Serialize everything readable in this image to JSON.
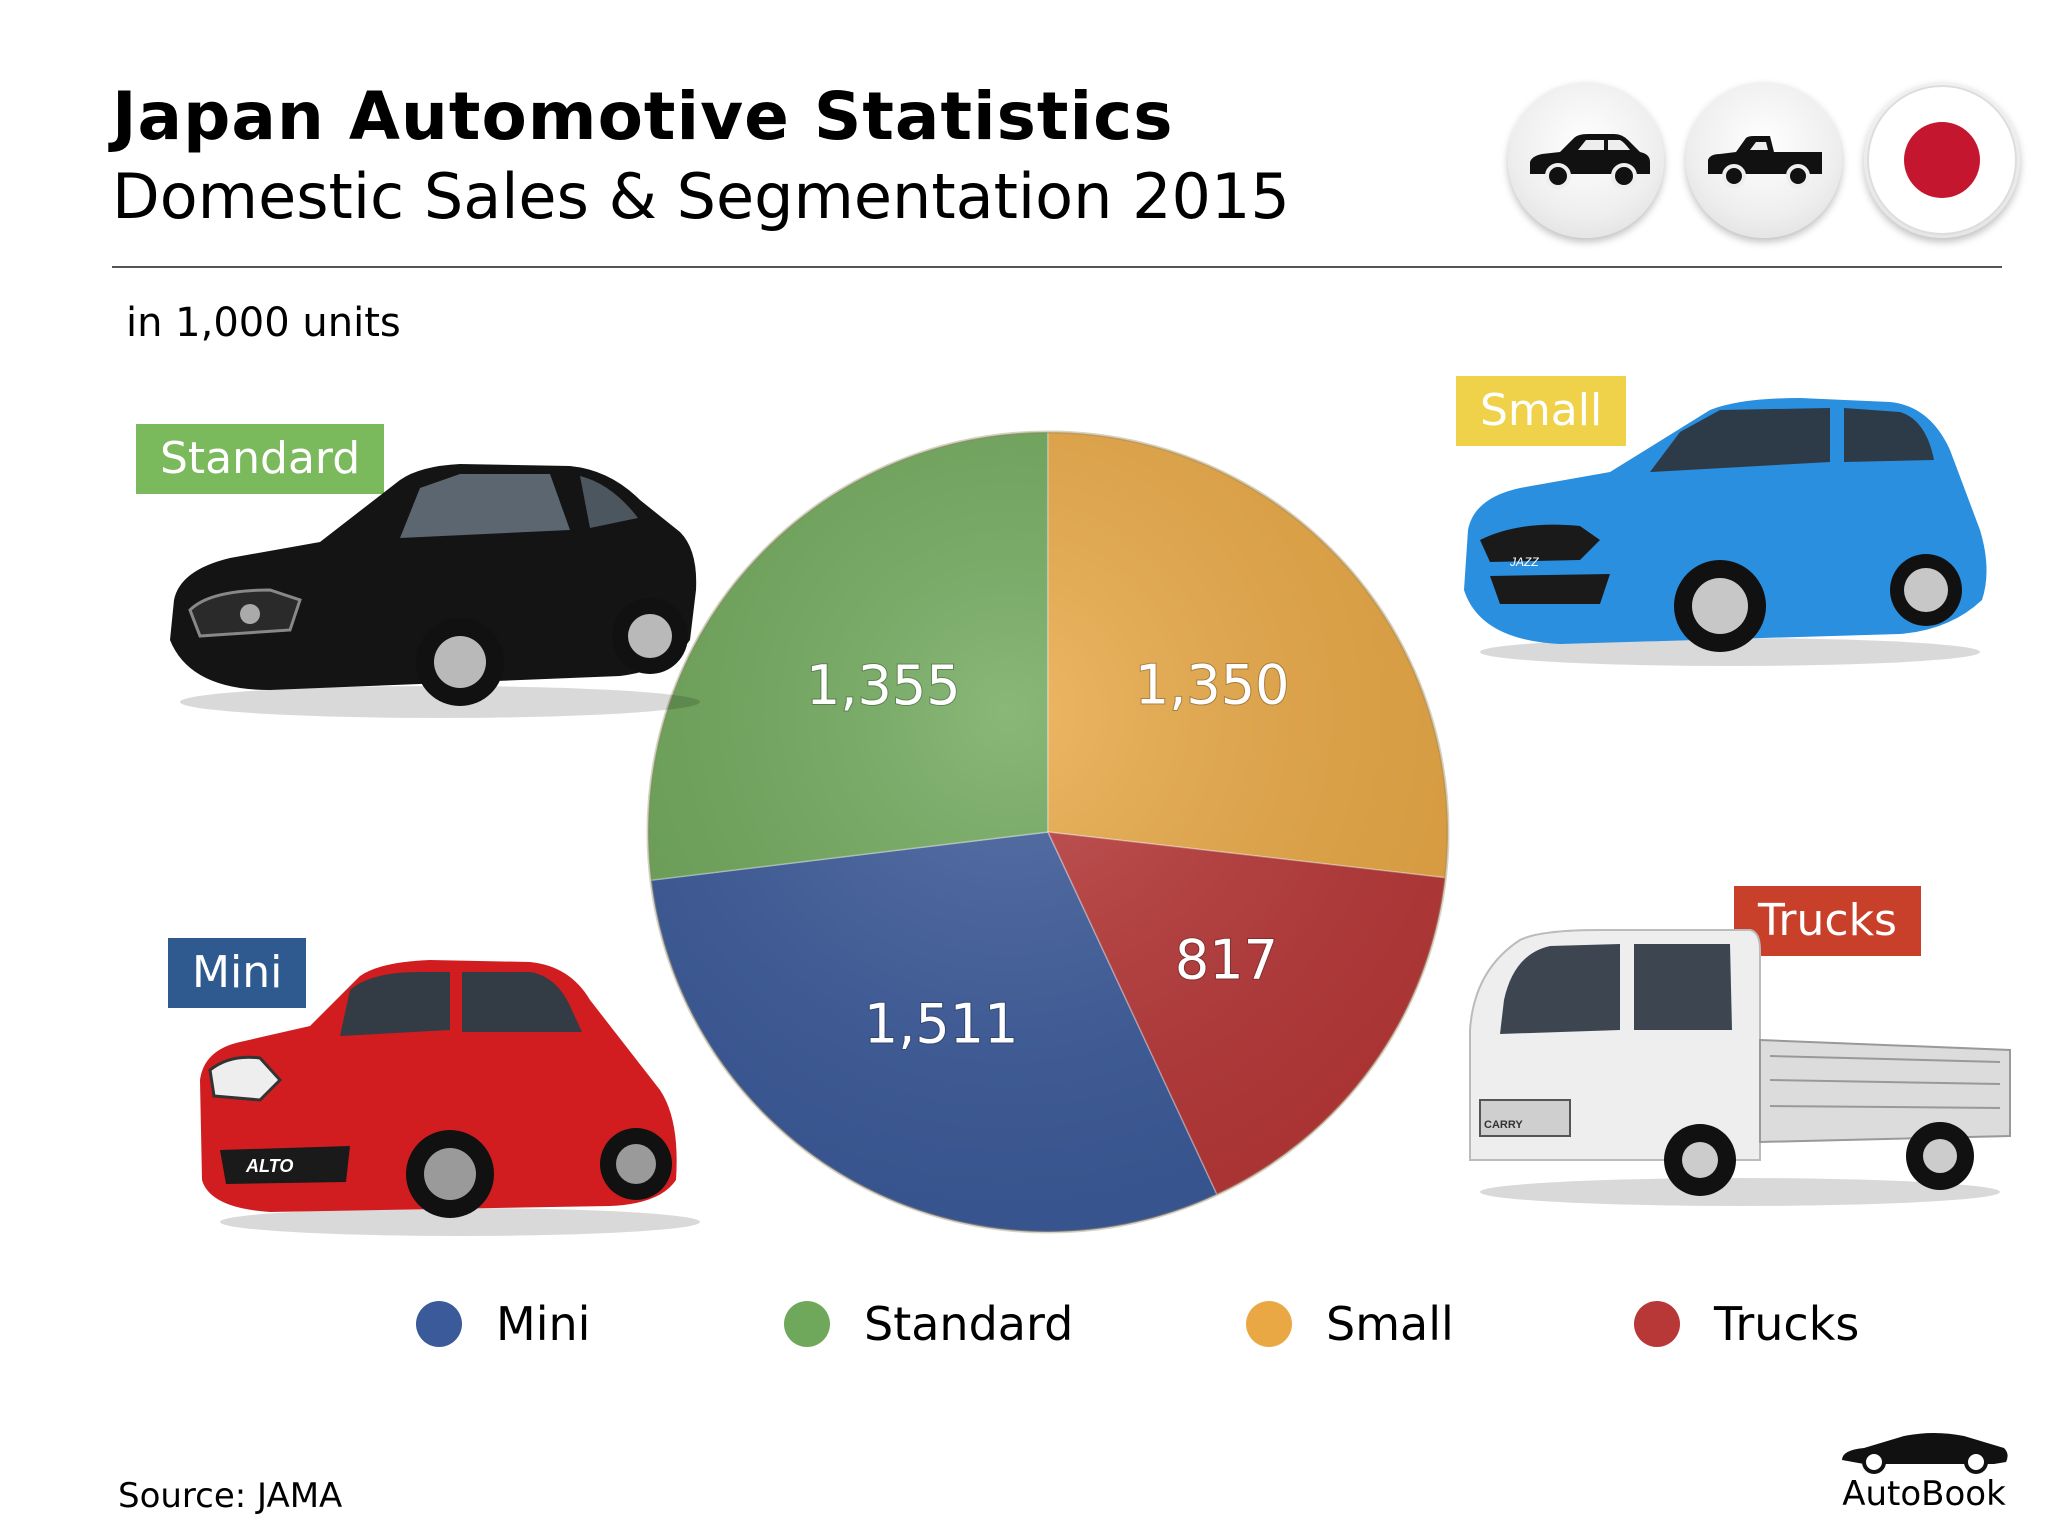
{
  "header": {
    "title": "Japan Automotive Statistics",
    "subtitle": "Domestic Sales & Segmentation 2015",
    "units": "in 1,000 units",
    "badges": [
      {
        "icon": "sedan-icon"
      },
      {
        "icon": "pickup-icon"
      },
      {
        "icon": "japan-flag-icon"
      }
    ]
  },
  "chart_data": {
    "type": "pie",
    "categories": [
      "Mini",
      "Standard",
      "Small",
      "Trucks"
    ],
    "values": [
      1511,
      1355,
      1350,
      817
    ],
    "data_labels": [
      "1,511",
      "1,355",
      "1,350",
      "817"
    ],
    "colors": [
      "#3b5a9a",
      "#6fa85a",
      "#e9a844",
      "#b83737"
    ],
    "legend_position": "bottom"
  },
  "segments": {
    "standard": {
      "label": "Standard",
      "color": "#7ab95c"
    },
    "small": {
      "label": "Small",
      "color": "#efd24a"
    },
    "mini": {
      "label": "Mini",
      "color": "#2f5a8f"
    },
    "trucks": {
      "label": "Trucks",
      "color": "#c8402a"
    }
  },
  "car_models": {
    "mini": "ALTO",
    "small": "JAZZ",
    "trucks": "CARRY"
  },
  "legend": [
    {
      "label": "Mini",
      "color": "#3b5a9a"
    },
    {
      "label": "Standard",
      "color": "#6fa85a"
    },
    {
      "label": "Small",
      "color": "#e9a844"
    },
    {
      "label": "Trucks",
      "color": "#b83737"
    }
  ],
  "footer": {
    "source": "Source:  JAMA",
    "brand": "AutoBook"
  }
}
